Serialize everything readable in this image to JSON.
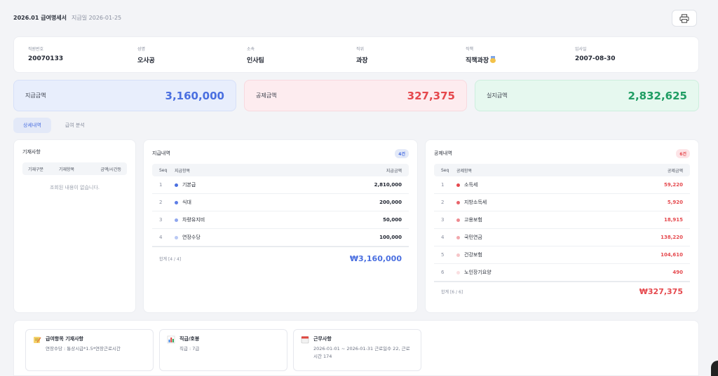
{
  "header": {
    "title": "2026.01 급여명세서",
    "paydate": "지급일 2026-01-25"
  },
  "employee": [
    {
      "label": "직원번호",
      "value": "20070133"
    },
    {
      "label": "성명",
      "value": "오사공"
    },
    {
      "label": "소속",
      "value": "인사팀"
    },
    {
      "label": "직위",
      "value": "과장"
    },
    {
      "label": "직책",
      "value": "직책과장"
    },
    {
      "label": "입사일",
      "value": "2007-08-30"
    }
  ],
  "summary": {
    "pay_label": "지급금액",
    "pay_value": "3,160,000",
    "ded_label": "공제금액",
    "ded_value": "327,375",
    "net_label": "실지급액",
    "net_value": "2,832,625"
  },
  "tabs": [
    "상세내역",
    "급여 분석"
  ],
  "entries": {
    "title": "기재사항",
    "columns": [
      "기재구분",
      "기재항목",
      "금액/시간등"
    ],
    "empty": "조회된 내용이 없습니다."
  },
  "payments": {
    "title": "지급내역",
    "badge": "4건",
    "col_seq": "Seq",
    "col_name": "지급항목",
    "col_amt": "지급금액",
    "rows": [
      {
        "seq": "1",
        "name": "기본급",
        "amount": "2,810,000",
        "dot": "#4a6fe0"
      },
      {
        "seq": "2",
        "name": "식대",
        "amount": "200,000",
        "dot": "#5d7de6"
      },
      {
        "seq": "3",
        "name": "차량유지비",
        "amount": "50,000",
        "dot": "#8fa6ee"
      },
      {
        "seq": "4",
        "name": "연장수당",
        "amount": "100,000",
        "dot": "#b9c8f4"
      }
    ],
    "footer": "합계 [4 / 4]",
    "total": "₩3,160,000"
  },
  "deductions": {
    "title": "공제내역",
    "badge": "6건",
    "col_seq": "Seq",
    "col_name": "공제항목",
    "col_amt": "공제금액",
    "rows": [
      {
        "seq": "1",
        "name": "소득세",
        "amount": "59,220",
        "dot": "#e5484d"
      },
      {
        "seq": "2",
        "name": "지방소득세",
        "amount": "5,920",
        "dot": "#e8636a"
      },
      {
        "seq": "3",
        "name": "고용보험",
        "amount": "18,915",
        "dot": "#ee8a90"
      },
      {
        "seq": "4",
        "name": "국민연금",
        "amount": "138,220",
        "dot": "#f2a8ad"
      },
      {
        "seq": "5",
        "name": "건강보험",
        "amount": "104,610",
        "dot": "#f6c5c8"
      },
      {
        "seq": "6",
        "name": "노인장기요양",
        "amount": "490",
        "dot": "#fadfe1"
      }
    ],
    "footer": "합계 [6 / 6]",
    "total": "₩327,375"
  },
  "notes": [
    {
      "title": "급여항목 기재사항",
      "desc": "연장수당 : 통상시급*1.5*연장근로시간",
      "icon": "memo-icon"
    },
    {
      "title": "직급/호봉",
      "desc": "직급 : 7급",
      "icon": "bar-chart-icon"
    },
    {
      "title": "근무사항",
      "desc": "2026-01-01 ~ 2026-01-31 근로일수 22, 근로시간 174",
      "icon": "calendar-icon"
    }
  ]
}
